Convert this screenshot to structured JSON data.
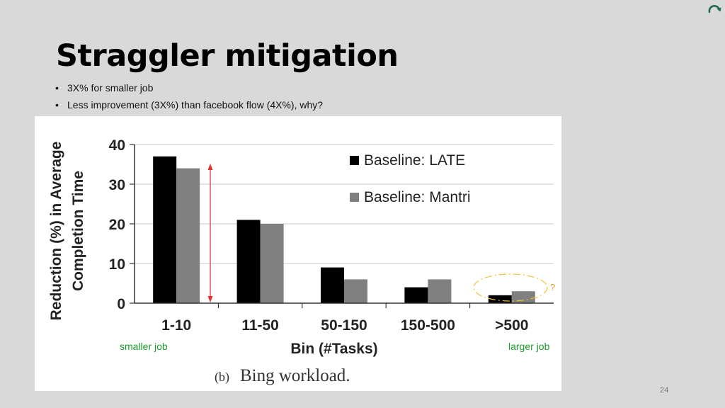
{
  "slide": {
    "title": "Straggler mitigation",
    "bullets": [
      "3X% for smaller job",
      "Less improvement (3X%) than facebook flow (4X%), why?"
    ],
    "page_number": "24",
    "corner_icon": "curved-arrow-icon"
  },
  "annotations": {
    "smaller_job": "smaller job",
    "larger_job": "larger job",
    "question_mark": "?",
    "annotation_color": "#1a9c2a",
    "arrow_color": "#e03030",
    "ellipse_color": "#f0c030"
  },
  "chart_data": {
    "type": "bar",
    "caption_prefix": "(b)",
    "caption": "Bing workload.",
    "xlabel": "Bin (#Tasks)",
    "ylabel_lines": [
      "Reduction (%) in Average",
      "Completion Time"
    ],
    "categories": [
      "1-10",
      "11-50",
      "50-150",
      "150-500",
      ">500"
    ],
    "series": [
      {
        "name": "Baseline: LATE",
        "color": "#000000",
        "values": [
          37,
          21,
          9,
          4,
          2
        ]
      },
      {
        "name": "Baseline: Mantri",
        "color": "#808080",
        "values": [
          34,
          20,
          6,
          6,
          3
        ]
      }
    ],
    "ylim": [
      0,
      40
    ],
    "yticks": [
      0,
      10,
      20,
      30,
      40
    ],
    "grid": true,
    "legend_position": "top-right"
  }
}
